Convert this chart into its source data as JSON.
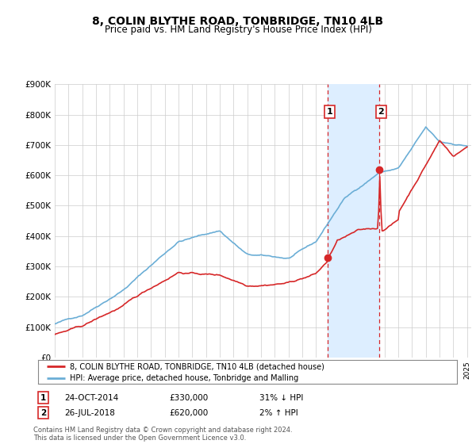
{
  "title": "8, COLIN BLYTHE ROAD, TONBRIDGE, TN10 4LB",
  "subtitle": "Price paid vs. HM Land Registry's House Price Index (HPI)",
  "sale1_label": "24-OCT-2014",
  "sale1_price": 330000,
  "sale1_hpi_pct": "31% ↓ HPI",
  "sale2_label": "26-JUL-2018",
  "sale2_price": 620000,
  "sale2_hpi_pct": "2% ↑ HPI",
  "legend_line1": "8, COLIN BLYTHE ROAD, TONBRIDGE, TN10 4LB (detached house)",
  "legend_line2": "HPI: Average price, detached house, Tonbridge and Malling",
  "footnote": "Contains HM Land Registry data © Crown copyright and database right 2024.\nThis data is licensed under the Open Government Licence v3.0.",
  "hpi_color": "#6baed6",
  "price_color": "#d62728",
  "shaded_color": "#ddeeff",
  "vline_color": "#d62728",
  "grid_color": "#cccccc",
  "background_color": "#ffffff",
  "ylim": [
    0,
    900000
  ],
  "yticks": [
    0,
    100000,
    200000,
    300000,
    400000,
    500000,
    600000,
    700000,
    800000,
    900000
  ],
  "ytick_labels": [
    "£0",
    "£100K",
    "£200K",
    "£300K",
    "£400K",
    "£500K",
    "£600K",
    "£700K",
    "£800K",
    "£900K"
  ]
}
